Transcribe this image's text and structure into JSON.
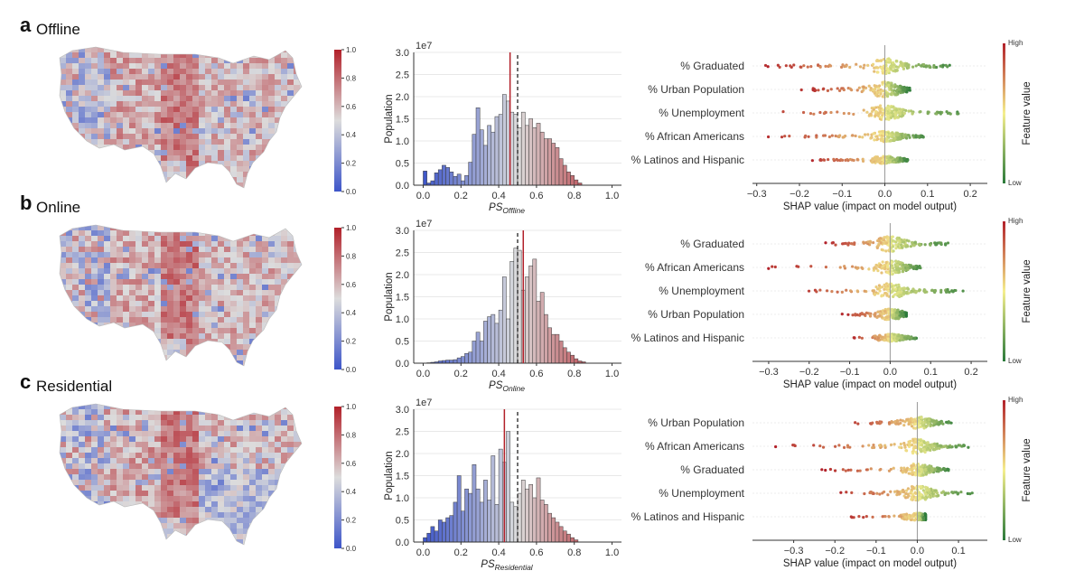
{
  "colors": {
    "cool": "#3d55c9",
    "neutral": "#dcdcdc",
    "warm": "#b2212a",
    "shap_high": "#b2212a",
    "shap_mid": "#f5ef8e",
    "shap_low": "#2a7a3a",
    "mean_line": "#b2212a",
    "ref_line": "#111111"
  },
  "colorbar": {
    "ticks": [
      "0.0",
      "0.2",
      "0.4",
      "0.6",
      "0.8",
      "1.0"
    ]
  },
  "shap_colorbar": {
    "high": "High",
    "low": "Low",
    "label": "Feature value"
  },
  "panels": [
    {
      "letter": "a",
      "title": "Offline",
      "xlabel_main": "PS",
      "xlabel_sub": "Offline"
    },
    {
      "letter": "b",
      "title": "Online",
      "xlabel_main": "PS",
      "xlabel_sub": "Online"
    },
    {
      "letter": "c",
      "title": "Residential",
      "xlabel_main": "PS",
      "xlabel_sub": "Residential"
    }
  ],
  "chart_data": [
    {
      "panel": "a",
      "type": "bar",
      "subtype": "histogram",
      "xlabel": "PS Offline",
      "ylabel": "Population",
      "offset_label": "1e7",
      "xlim": [
        -0.05,
        1.05
      ],
      "ylim": [
        0,
        3.0
      ],
      "xticks": [
        "0.0",
        "0.2",
        "0.4",
        "0.6",
        "0.8",
        "1.0"
      ],
      "yticks": [
        "0.0",
        "0.5",
        "1.0",
        "1.5",
        "2.0",
        "2.5",
        "3.0"
      ],
      "bin_start": 0.0,
      "bin_width": 0.02,
      "values": [
        0.32,
        0.05,
        0.1,
        0.28,
        0.35,
        0.45,
        0.4,
        0.3,
        0.2,
        0.25,
        0.1,
        0.22,
        0.52,
        1.15,
        1.75,
        1.25,
        0.9,
        1.35,
        1.2,
        1.55,
        1.6,
        2.05,
        1.9,
        1.65,
        1.6,
        1.3,
        1.65,
        1.35,
        1.5,
        1.3,
        1.4,
        1.2,
        1.05,
        1.05,
        0.95,
        0.85,
        0.6,
        0.45,
        0.3,
        0.22,
        0.12,
        0.05
      ],
      "mean_line": 0.46,
      "reference_line": 0.5
    },
    {
      "panel": "b",
      "type": "bar",
      "subtype": "histogram",
      "xlabel": "PS Online",
      "ylabel": "Population",
      "offset_label": "1e7",
      "xlim": [
        -0.05,
        1.05
      ],
      "ylim": [
        0,
        3.0
      ],
      "xticks": [
        "0.0",
        "0.2",
        "0.4",
        "0.6",
        "0.8",
        "1.0"
      ],
      "yticks": [
        "0.0",
        "0.5",
        "1.0",
        "1.5",
        "2.0",
        "2.5",
        "3.0"
      ],
      "bin_start": 0.0,
      "bin_width": 0.02,
      "values": [
        0.0,
        0.01,
        0.02,
        0.03,
        0.05,
        0.06,
        0.07,
        0.07,
        0.08,
        0.12,
        0.15,
        0.22,
        0.25,
        0.5,
        0.7,
        0.5,
        0.95,
        1.05,
        1.1,
        0.9,
        1.2,
        1.95,
        1.0,
        2.3,
        2.6,
        2.55,
        1.65,
        1.95,
        2.2,
        2.35,
        1.4,
        1.6,
        1.1,
        0.8,
        0.65,
        0.65,
        0.5,
        0.35,
        0.25,
        0.18,
        0.1,
        0.05,
        0.03
      ],
      "mean_line": 0.53,
      "reference_line": 0.5
    },
    {
      "panel": "c",
      "type": "bar",
      "subtype": "histogram",
      "xlabel": "PS Residential",
      "ylabel": "Population",
      "offset_label": "1e7",
      "xlim": [
        -0.05,
        1.05
      ],
      "ylim": [
        0,
        3.0
      ],
      "xticks": [
        "0.0",
        "0.2",
        "0.4",
        "0.6",
        "0.8",
        "1.0"
      ],
      "yticks": [
        "0.0",
        "0.5",
        "1.0",
        "1.5",
        "2.0",
        "2.5",
        "3.0"
      ],
      "bin_start": 0.0,
      "bin_width": 0.02,
      "values": [
        0.1,
        0.2,
        0.35,
        0.25,
        0.5,
        0.45,
        0.55,
        0.6,
        0.9,
        1.5,
        0.7,
        1.2,
        1.1,
        1.75,
        1.2,
        0.9,
        1.4,
        0.95,
        1.95,
        0.85,
        2.1,
        1.8,
        2.5,
        0.9,
        0.8,
        1.1,
        1.4,
        1.2,
        1.3,
        1.0,
        1.45,
        0.95,
        0.85,
        0.65,
        0.55,
        0.45,
        0.35,
        0.25,
        0.18,
        0.1,
        0.05
      ],
      "mean_line": 0.43,
      "reference_line": 0.5
    },
    {
      "panel": "a",
      "type": "scatter",
      "subtype": "shap_beeswarm",
      "xlabel": "SHAP value (impact on model output)",
      "xlim": [
        -0.31,
        0.24
      ],
      "xticks": [
        -0.3,
        -0.2,
        -0.1,
        0.0,
        0.1,
        0.2
      ],
      "xtick_labels": [
        "−0.3",
        "−0.2",
        "−0.1",
        "0.0",
        "0.1",
        "0.2"
      ],
      "features": [
        {
          "name": "% Graduated",
          "min": -0.29,
          "max": 0.18,
          "spread": 1.0
        },
        {
          "name": "% Urban Population",
          "min": -0.2,
          "max": 0.06,
          "spread": 1.0
        },
        {
          "name": "% Unemployment",
          "min": -0.28,
          "max": 0.22,
          "spread": 1.0
        },
        {
          "name": "% African Americans",
          "min": -0.29,
          "max": 0.11,
          "spread": 0.7
        },
        {
          "name": "% Latinos and Hispanic",
          "min": -0.18,
          "max": 0.06,
          "spread": 0.5
        }
      ]
    },
    {
      "panel": "b",
      "type": "scatter",
      "subtype": "shap_beeswarm",
      "xlabel": "SHAP value (impact on model output)",
      "xlim": [
        -0.34,
        0.24
      ],
      "xticks": [
        -0.3,
        -0.2,
        -0.1,
        0.0,
        0.1,
        0.2
      ],
      "xtick_labels": [
        "−0.3",
        "−0.2",
        "−0.1",
        "0.0",
        "0.1",
        "0.2"
      ],
      "features": [
        {
          "name": "% Graduated",
          "min": -0.16,
          "max": 0.17,
          "spread": 1.0
        },
        {
          "name": "% African Americans",
          "min": -0.31,
          "max": 0.09,
          "spread": 0.9
        },
        {
          "name": "% Unemployment",
          "min": -0.26,
          "max": 0.22,
          "spread": 1.0
        },
        {
          "name": "% Urban Population",
          "min": -0.12,
          "max": 0.04,
          "spread": 0.7
        },
        {
          "name": "% Latinos and Hispanic",
          "min": -0.1,
          "max": 0.08,
          "spread": 0.5
        }
      ]
    },
    {
      "panel": "c",
      "type": "scatter",
      "subtype": "shap_beeswarm",
      "xlabel": "SHAP value (impact on model output)",
      "xlim": [
        -0.4,
        0.17
      ],
      "xticks": [
        -0.3,
        -0.2,
        -0.1,
        0.0,
        0.1
      ],
      "xtick_labels": [
        "−0.3",
        "−0.2",
        "−0.1",
        "0.0",
        "0.1"
      ],
      "features": [
        {
          "name": "% Urban Population",
          "min": -0.17,
          "max": 0.1,
          "spread": 0.8
        },
        {
          "name": "% African Americans",
          "min": -0.36,
          "max": 0.15,
          "spread": 1.0
        },
        {
          "name": "% Graduated",
          "min": -0.24,
          "max": 0.09,
          "spread": 0.8
        },
        {
          "name": "% Unemployment",
          "min": -0.2,
          "max": 0.16,
          "spread": 1.0
        },
        {
          "name": "% Latinos and Hispanic",
          "min": -0.18,
          "max": 0.02,
          "spread": 0.5
        }
      ]
    }
  ]
}
